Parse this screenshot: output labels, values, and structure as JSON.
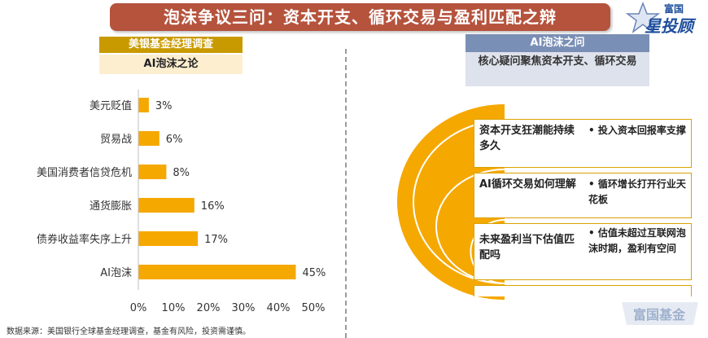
{
  "banner": {
    "title": "泡沫争议三问：资本开支、循环交易与盈利匹配之辩"
  },
  "logo": {
    "line1": "富国",
    "line2": "星投顾"
  },
  "left_panel": {
    "header": "美银基金经理调查",
    "subheader": "AI泡沫之论"
  },
  "chart_data": {
    "type": "bar",
    "orientation": "horizontal",
    "categories": [
      "美元贬值",
      "贸易战",
      "美国消费者信贷危机",
      "通货膨胀",
      "债券收益率失序上升",
      "AI泡沫"
    ],
    "values": [
      3,
      6,
      8,
      16,
      17,
      45
    ],
    "value_labels": [
      "3%",
      "6%",
      "8%",
      "16%",
      "17%",
      "45%"
    ],
    "x_ticks": [
      "0%",
      "10%",
      "20%",
      "30%",
      "40%",
      "50%"
    ],
    "xlim": [
      0,
      50
    ],
    "bar_color": "#f5a800",
    "grid": false
  },
  "source": "数据来源：美国银行全球基金经理调查，基金有风险，投资需谨慎。",
  "right_panel": {
    "header": "AI泡沫之问",
    "subheader": "核心疑问聚焦资本开支、循环交易",
    "rows": [
      {
        "question": "资本开支狂潮能持续多久",
        "answer": "• 投入资本回报率支撑"
      },
      {
        "question": "AI循环交易如何理解",
        "answer": "• 循环增长打开行业天花板"
      },
      {
        "question": "未来盈利当下估值匹配吗",
        "answer": "• 估值未超过互联网泡沫时期，盈利有空间"
      }
    ],
    "accent_color": "#f5a800",
    "header_color": "#7a8fb5"
  },
  "watermark": {
    "text": "富国基金"
  }
}
